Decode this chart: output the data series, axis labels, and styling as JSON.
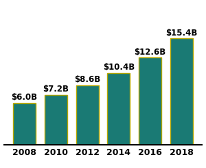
{
  "categories": [
    "2008",
    "2010",
    "2012",
    "2014",
    "2016",
    "2018"
  ],
  "values": [
    6.0,
    7.2,
    8.6,
    10.4,
    12.6,
    15.4
  ],
  "labels": [
    "$6.0B",
    "$7.2B",
    "$8.6B",
    "$10.4B",
    "$12.6B",
    "$15.4B"
  ],
  "bar_color": "#1a7a74",
  "bar_edge_color": "#b8a800",
  "bar_edge_width": 1.0,
  "background_color": "#ffffff",
  "ylim": [
    0,
    19
  ],
  "label_fontsize": 8.5,
  "tick_fontsize": 9,
  "label_fontweight": "bold",
  "bar_width": 0.72
}
